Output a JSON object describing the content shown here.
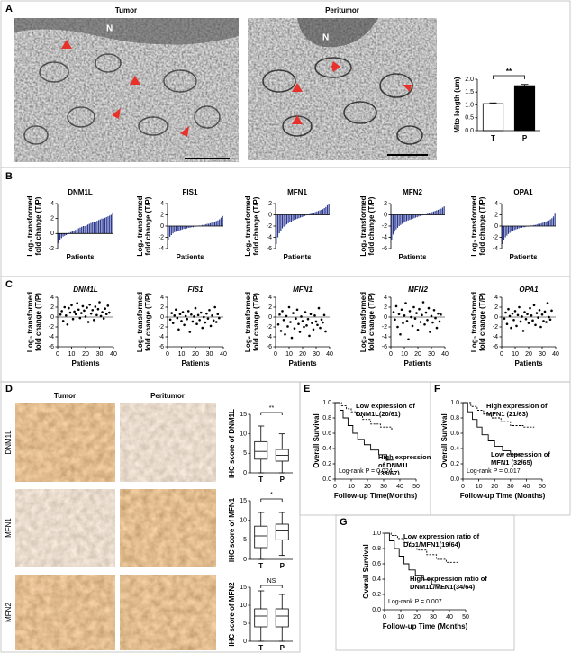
{
  "panel_labels": [
    "A",
    "B",
    "C",
    "D",
    "E",
    "F",
    "G"
  ],
  "figure_a": {
    "tumor_label": "Tumor",
    "peritumor_label": "Peritumor",
    "nucleus_label": "N"
  },
  "figure_d": {
    "columns": [
      "Tumor",
      "Peritumor"
    ],
    "rows": [
      "DNM1L",
      "MFN1",
      "MFN2"
    ]
  },
  "chart_data": [
    {
      "type": "bar",
      "y_label": "Mito length (um)",
      "categories": [
        "T",
        "P"
      ],
      "values": [
        1.05,
        1.75
      ],
      "errors": [
        0.03,
        0.05
      ],
      "colors": [
        "#ffffff",
        "#000000"
      ],
      "annotation": "**",
      "ylim": [
        0,
        2
      ],
      "yticks": [
        {
          "value": 0,
          "label": "0.0"
        },
        0.5,
        {
          "value": 1,
          "label": "1.0"
        },
        1.5,
        {
          "value": 2,
          "label": "2.0"
        }
      ]
    },
    {
      "type": "bar",
      "title": "DNM1L",
      "y_label": [
        "Log₂ transformed",
        "fold change (T/P)"
      ],
      "x_label": "Patients",
      "color": "#2b3990",
      "ylim": [
        -2,
        4
      ],
      "yticks": [
        -2,
        0,
        2,
        4
      ],
      "values": [
        -1.3,
        -0.9,
        -0.6,
        -0.4,
        -0.3,
        -0.2,
        -0.1,
        0.1,
        0.2,
        0.3,
        0.4,
        0.5,
        0.6,
        0.7,
        0.8,
        0.9,
        1.0,
        1.0,
        1.1,
        1.2,
        1.3,
        1.4,
        1.5,
        1.5,
        1.6,
        1.7,
        1.8,
        1.9,
        2.0,
        2.0,
        2.1,
        2.2,
        2.3,
        2.4,
        2.5,
        2.7
      ]
    },
    {
      "type": "bar",
      "title": "FIS1",
      "y_label": [
        "Log₂ transformed",
        "fold change (T/P)"
      ],
      "x_label": "Patients",
      "color": "#2b3990",
      "ylim": [
        -4,
        4
      ],
      "yticks": [
        -4,
        -2,
        0,
        2,
        4
      ],
      "values": [
        -2.5,
        -1.9,
        -1.6,
        -1.3,
        -1.1,
        -1.0,
        -0.9,
        -0.8,
        -0.7,
        -0.6,
        -0.5,
        -0.5,
        -0.4,
        -0.3,
        -0.3,
        -0.2,
        -0.2,
        -0.1,
        -0.1,
        0.0,
        0.1,
        0.1,
        0.2,
        0.2,
        0.3,
        0.4,
        0.4,
        0.5,
        0.6,
        0.7,
        0.8,
        0.9,
        1.0,
        1.2,
        1.5,
        1.8
      ]
    },
    {
      "type": "bar",
      "title": "MFN1",
      "y_label": [
        "Log₂ transformed",
        "fold change (T/P)"
      ],
      "x_label": "Patients",
      "color": "#2b3990",
      "ylim": [
        -6,
        2
      ],
      "yticks": [
        -6,
        -4,
        -2,
        0,
        2
      ],
      "values": [
        -5.2,
        -4.0,
        -3.3,
        -2.8,
        -2.4,
        -2.1,
        -1.9,
        -1.7,
        -1.5,
        -1.3,
        -1.2,
        -1.0,
        -0.9,
        -0.8,
        -0.7,
        -0.6,
        -0.5,
        -0.4,
        -0.3,
        -0.2,
        -0.1,
        0.0,
        0.1,
        0.2,
        0.3,
        0.4,
        0.5,
        0.6,
        0.7,
        0.8,
        0.9,
        1.0,
        1.2,
        1.4,
        1.7,
        2.0
      ]
    },
    {
      "type": "bar",
      "title": "MFN2",
      "y_label": [
        "Log₂ transformed",
        "fold change (T/P)"
      ],
      "x_label": "Patients",
      "color": "#2b3990",
      "ylim": [
        -6,
        2
      ],
      "yticks": [
        -6,
        -4,
        -2,
        0,
        2
      ],
      "values": [
        -4.5,
        -3.5,
        -3.0,
        -2.6,
        -2.3,
        -2.0,
        -1.8,
        -1.6,
        -1.4,
        -1.2,
        -1.1,
        -1.0,
        -0.9,
        -0.8,
        -0.7,
        -0.6,
        -0.5,
        -0.4,
        -0.3,
        -0.2,
        -0.1,
        -0.1,
        0.0,
        0.1,
        0.2,
        0.3,
        0.4,
        0.5,
        0.6,
        0.7,
        0.8,
        0.9,
        1.0,
        1.1,
        1.3,
        1.5
      ]
    },
    {
      "type": "bar",
      "title": "OPA1",
      "y_label": [
        "Log₂ transformed",
        "fold change (T/P)"
      ],
      "x_label": "Patients",
      "color": "#2b3990",
      "ylim": [
        -4,
        4
      ],
      "yticks": [
        -4,
        -2,
        0,
        2,
        4
      ],
      "values": [
        -3.2,
        -2.4,
        -2.0,
        -1.7,
        -1.4,
        -1.2,
        -1.0,
        -0.8,
        -0.7,
        -0.6,
        -0.5,
        -0.4,
        -0.3,
        -0.3,
        -0.2,
        -0.2,
        -0.1,
        -0.1,
        0.0,
        0.1,
        0.1,
        0.2,
        0.2,
        0.3,
        0.4,
        0.4,
        0.5,
        0.6,
        0.7,
        0.8,
        0.9,
        1.0,
        1.2,
        1.4,
        1.7,
        2.2
      ]
    },
    {
      "type": "scatter",
      "title": "DNM1L",
      "y_label": [
        "Log₂ transformed",
        "fold change (T/P)"
      ],
      "x_label": "Patients",
      "xlim": [
        0,
        40
      ],
      "xticks": [
        0,
        10,
        20,
        30,
        40
      ],
      "ylim": [
        -6,
        4
      ],
      "yticks": [
        -6,
        -4,
        -2,
        0,
        2,
        4
      ],
      "x": [
        2,
        3,
        4,
        5,
        6,
        7,
        8,
        9,
        10,
        11,
        12,
        13,
        14,
        15,
        16,
        17,
        18,
        19,
        20,
        21,
        22,
        23,
        24,
        25,
        26,
        27,
        28,
        29,
        30,
        31,
        32,
        33,
        34,
        35,
        36,
        37
      ],
      "values": [
        0.5,
        1.2,
        -0.8,
        2.0,
        0.3,
        -1.5,
        1.8,
        0.9,
        2.4,
        -0.4,
        1.1,
        0.6,
        2.8,
        1.5,
        -0.2,
        0.8,
        2.2,
        1.3,
        0.1,
        1.9,
        -1.0,
        2.5,
        0.7,
        1.4,
        -0.6,
        2.1,
        0.4,
        1.6,
        3.0,
        0.2,
        1.0,
        -0.3,
        1.7,
        0.6,
        2.3,
        0.9
      ]
    },
    {
      "type": "scatter",
      "title": "FIS1",
      "y_label": [
        "Log₂ transformed",
        "fold change (T/P)"
      ],
      "x_label": "Patients",
      "xlim": [
        0,
        40
      ],
      "xticks": [
        0,
        10,
        20,
        30,
        40
      ],
      "ylim": [
        -6,
        4
      ],
      "yticks": [
        -6,
        -4,
        -2,
        0,
        2,
        4
      ],
      "x": [
        2,
        3,
        4,
        5,
        6,
        7,
        8,
        9,
        10,
        11,
        12,
        13,
        14,
        15,
        16,
        17,
        18,
        19,
        20,
        21,
        22,
        23,
        24,
        25,
        26,
        27,
        28,
        29,
        30,
        31,
        32,
        33,
        34,
        35,
        36,
        37
      ],
      "values": [
        -0.5,
        0.8,
        -1.2,
        0.3,
        1.5,
        -0.2,
        -2.5,
        0.6,
        -0.8,
        1.0,
        -1.6,
        0.2,
        -0.4,
        1.2,
        -3.0,
        0.5,
        -0.9,
        0.1,
        1.8,
        -1.4,
        0.4,
        -0.6,
        0.9,
        -2.2,
        0.0,
        -1.1,
        0.7,
        -0.3,
        1.4,
        -1.8,
        0.3,
        -0.7,
        2.0,
        -1.0,
        0.6,
        -0.2
      ]
    },
    {
      "type": "scatter",
      "title": "MFN1",
      "y_label": [
        "Log₂ transformed",
        "fold change (T/P)"
      ],
      "x_label": "Patients",
      "xlim": [
        0,
        40
      ],
      "xticks": [
        0,
        10,
        20,
        30,
        40
      ],
      "ylim": [
        -6,
        4
      ],
      "yticks": [
        -6,
        -4,
        -2,
        0,
        2,
        4
      ],
      "x": [
        2,
        3,
        4,
        5,
        6,
        7,
        8,
        9,
        10,
        11,
        12,
        13,
        14,
        15,
        16,
        17,
        18,
        19,
        20,
        21,
        22,
        23,
        24,
        25,
        26,
        27,
        28,
        29,
        30,
        31,
        32,
        33,
        34,
        35,
        36,
        37
      ],
      "values": [
        -1.5,
        0.5,
        -2.8,
        1.2,
        -0.6,
        -3.5,
        0.2,
        -1.9,
        2.0,
        -1.0,
        -4.2,
        0.8,
        -2.3,
        -0.3,
        1.5,
        -1.4,
        -3.0,
        0.1,
        -0.8,
        -2.0,
        1.0,
        -1.7,
        -0.4,
        -3.8,
        0.6,
        -1.2,
        -2.5,
        0.3,
        -0.9,
        -1.6,
        1.8,
        -2.2,
        -0.5,
        -1.1,
        0.4,
        -2.9
      ]
    },
    {
      "type": "scatter",
      "title": "MFN2",
      "y_label": [
        "Log₂ transformed",
        "fold change (T/P)"
      ],
      "x_label": "Patients",
      "xlim": [
        0,
        40
      ],
      "xticks": [
        0,
        10,
        20,
        30,
        40
      ],
      "ylim": [
        -6,
        4
      ],
      "yticks": [
        -6,
        -4,
        -2,
        0,
        2,
        4
      ],
      "x": [
        2,
        3,
        4,
        5,
        6,
        7,
        8,
        9,
        10,
        11,
        12,
        13,
        14,
        15,
        16,
        17,
        18,
        19,
        20,
        21,
        22,
        23,
        24,
        25,
        26,
        27,
        28,
        29,
        30,
        31,
        32,
        33,
        34,
        35,
        36,
        37
      ],
      "values": [
        1.0,
        -0.5,
        2.2,
        -2.0,
        0.6,
        -3.5,
        1.5,
        -1.2,
        0.3,
        2.8,
        -0.8,
        -4.5,
        1.2,
        0.0,
        -1.8,
        2.0,
        -0.3,
        0.8,
        -2.6,
        1.6,
        -1.0,
        0.4,
        3.0,
        -1.5,
        0.9,
        -0.6,
        1.8,
        -3.0,
        0.2,
        -1.1,
        1.4,
        -0.2,
        -2.2,
        0.7,
        -0.9,
        0.5
      ]
    },
    {
      "type": "scatter",
      "title": "OPA1",
      "y_label": [
        "Log₂ transformed",
        "fold change (T/P)"
      ],
      "x_label": "Patients",
      "xlim": [
        0,
        40
      ],
      "xticks": [
        0,
        10,
        20,
        30,
        40
      ],
      "ylim": [
        -6,
        4
      ],
      "yticks": [
        -6,
        -4,
        -2,
        0,
        2,
        4
      ],
      "x": [
        2,
        3,
        4,
        5,
        6,
        7,
        8,
        9,
        10,
        11,
        12,
        13,
        14,
        15,
        16,
        17,
        18,
        19,
        20,
        21,
        22,
        23,
        24,
        25,
        26,
        27,
        28,
        29,
        30,
        31,
        32,
        33,
        34,
        35,
        36,
        37
      ],
      "values": [
        -0.3,
        0.9,
        -1.4,
        1.6,
        0.2,
        -2.2,
        0.7,
        -0.6,
        1.2,
        -1.8,
        0.4,
        2.0,
        -0.9,
        0.1,
        -2.8,
        1.0,
        -0.4,
        0.6,
        -1.2,
        1.8,
        0.3,
        -0.7,
        2.4,
        -1.6,
        0.8,
        -0.1,
        1.4,
        -2.0,
        0.5,
        -0.8,
        1.1,
        -1.0,
        2.8,
        0.0,
        -0.5,
        1.3
      ]
    },
    {
      "type": "box",
      "y_label": "IHC score of DNM1L",
      "categories": [
        "T",
        "P"
      ],
      "annotation": "**",
      "ylim": [
        0,
        15
      ],
      "yticks": [
        0,
        5,
        10,
        15
      ],
      "boxes": [
        {
          "min": 0,
          "q1": 3.5,
          "median": 5.5,
          "q3": 8,
          "max": 12
        },
        {
          "min": 0,
          "q1": 3,
          "median": 4.5,
          "q3": 6,
          "max": 10
        }
      ]
    },
    {
      "type": "box",
      "y_label": "IHC score of MFN1",
      "categories": [
        "T",
        "P"
      ],
      "annotation": "*",
      "ylim": [
        0,
        15
      ],
      "yticks": [
        0,
        5,
        10,
        15
      ],
      "boxes": [
        {
          "min": 0,
          "q1": 3,
          "median": 6,
          "q3": 8.5,
          "max": 12
        },
        {
          "min": 1,
          "q1": 5,
          "median": 7.5,
          "q3": 9,
          "max": 12
        }
      ]
    },
    {
      "type": "box",
      "y_label": "IHC score of MFN2",
      "categories": [
        "T",
        "P"
      ],
      "annotation": "NS",
      "ylim": [
        0,
        15
      ],
      "yticks": [
        0,
        5,
        10,
        15
      ],
      "boxes": [
        {
          "min": 0,
          "q1": 4,
          "median": 7,
          "q3": 9,
          "max": 14
        },
        {
          "min": 0,
          "q1": 4,
          "median": 7,
          "q3": 9,
          "max": 13
        }
      ]
    },
    {
      "type": "survival",
      "y_label": "Overall Survival",
      "x_label": "Follow-up Time(Months)",
      "annotation": "Log-rank P = 0.024",
      "xlim": [
        0,
        50
      ],
      "xticks": [
        0,
        10,
        20,
        30,
        40,
        50
      ],
      "ylim": [
        0,
        1
      ],
      "yticks": [
        {
          "value": 0,
          "label": "0.0"
        },
        0.2,
        0.4,
        0.6,
        0.8,
        {
          "value": 1,
          "label": "1.0"
        }
      ],
      "series": [
        {
          "name": "Low expression of DNM1L(20/61)",
          "dashed": true,
          "color": "#000000",
          "x": [
            0,
            4,
            7,
            10,
            13,
            17,
            22,
            28,
            35,
            45
          ],
          "values": [
            1,
            0.96,
            0.92,
            0.88,
            0.83,
            0.78,
            0.72,
            0.68,
            0.63,
            0.63
          ]
        },
        {
          "name": "High expression of DNM1L (33/67)",
          "dashed": false,
          "color": "#000000",
          "x": [
            0,
            3,
            5,
            8,
            11,
            14,
            18,
            22,
            27,
            32,
            36
          ],
          "values": [
            1,
            0.9,
            0.8,
            0.7,
            0.6,
            0.52,
            0.45,
            0.38,
            0.32,
            0.25,
            0.25
          ]
        }
      ]
    },
    {
      "type": "survival",
      "y_label": "Overall Survival",
      "x_label": "Follow-up Time (Months)",
      "annotation": "Log-rank P = 0.017",
      "xlim": [
        0,
        50
      ],
      "xticks": [
        0,
        10,
        20,
        30,
        40,
        50
      ],
      "ylim": [
        0,
        1
      ],
      "yticks": [
        {
          "value": 0,
          "label": "0.0"
        },
        0.2,
        0.4,
        0.6,
        0.8,
        {
          "value": 1,
          "label": "1.0"
        }
      ],
      "series": [
        {
          "name": "High expression of MFN1 (21/63)",
          "dashed": true,
          "color": "#000000",
          "x": [
            0,
            5,
            9,
            13,
            18,
            24,
            30,
            38,
            45
          ],
          "values": [
            1,
            0.95,
            0.9,
            0.85,
            0.8,
            0.75,
            0.7,
            0.68,
            0.68
          ]
        },
        {
          "name": "Low expression of MFN1 (32/65)",
          "dashed": false,
          "color": "#000000",
          "x": [
            0,
            3,
            6,
            9,
            12,
            16,
            20,
            25,
            30,
            36
          ],
          "values": [
            1,
            0.88,
            0.78,
            0.68,
            0.58,
            0.5,
            0.43,
            0.37,
            0.32,
            0.3
          ]
        }
      ]
    },
    {
      "type": "survival",
      "y_label": "Overall Survival",
      "x_label": "Follow-up Time (Months)",
      "annotation": "Log-rank P = 0.007",
      "xlim": [
        0,
        50
      ],
      "xticks": [
        0,
        10,
        20,
        30,
        40,
        50
      ],
      "ylim": [
        0,
        1
      ],
      "yticks": [
        {
          "value": 0,
          "label": "0.0"
        },
        0.2,
        0.4,
        0.6,
        0.8,
        {
          "value": 1,
          "label": "1.0"
        }
      ],
      "series": [
        {
          "name": "Low expression ratio of Drp1/MFN1(19/64)",
          "dashed": true,
          "color": "#000000",
          "x": [
            0,
            4,
            8,
            12,
            16,
            20,
            26,
            32,
            38,
            45
          ],
          "values": [
            1,
            0.97,
            0.93,
            0.88,
            0.83,
            0.78,
            0.72,
            0.66,
            0.62,
            0.62
          ]
        },
        {
          "name": "High expression ratio of DNM1L/MFN1(34/64)",
          "dashed": false,
          "color": "#000000",
          "x": [
            0,
            3,
            6,
            9,
            12,
            15,
            19,
            24,
            29,
            34,
            38
          ],
          "values": [
            1,
            0.9,
            0.8,
            0.7,
            0.6,
            0.52,
            0.45,
            0.39,
            0.33,
            0.28,
            0.28
          ]
        }
      ]
    }
  ]
}
